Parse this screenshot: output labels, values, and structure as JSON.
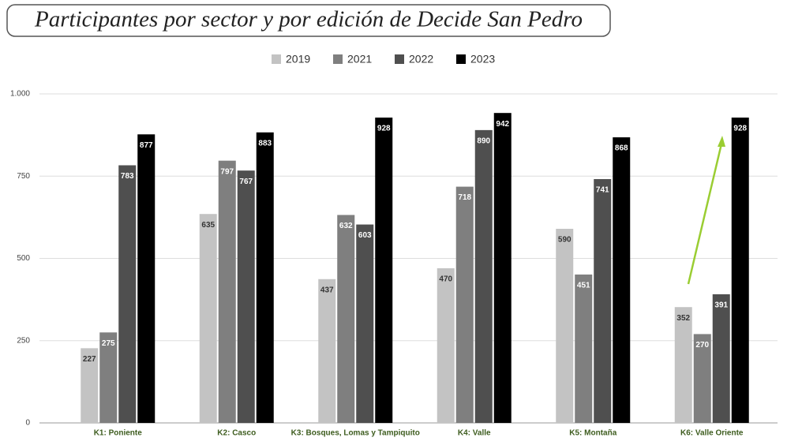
{
  "chart_data": {
    "type": "bar",
    "title": "Participantes por sector y por edición de Decide San Pedro",
    "categories": [
      "K1: Poniente",
      "K2: Casco",
      "K3: Bosques, Lomas y Tampiquito",
      "K4: Valle",
      "K5: Montaña",
      "K6: Valle Oriente"
    ],
    "series": [
      {
        "name": "2019",
        "color": "#c3c3c3",
        "values": [
          227,
          635,
          437,
          470,
          590,
          352
        ]
      },
      {
        "name": "2021",
        "color": "#7f7f7f",
        "values": [
          275,
          797,
          632,
          718,
          451,
          270
        ]
      },
      {
        "name": "2022",
        "color": "#4f4f4f",
        "values": [
          783,
          767,
          603,
          890,
          741,
          391
        ]
      },
      {
        "name": "2023",
        "color": "#000000",
        "values": [
          877,
          883,
          928,
          942,
          868,
          928
        ]
      }
    ],
    "ylim": [
      0,
      1000
    ],
    "yticks": [
      0,
      250,
      500,
      750,
      {
        "value": 1000,
        "label": "1.000"
      }
    ],
    "grid": true,
    "legend": "top"
  }
}
